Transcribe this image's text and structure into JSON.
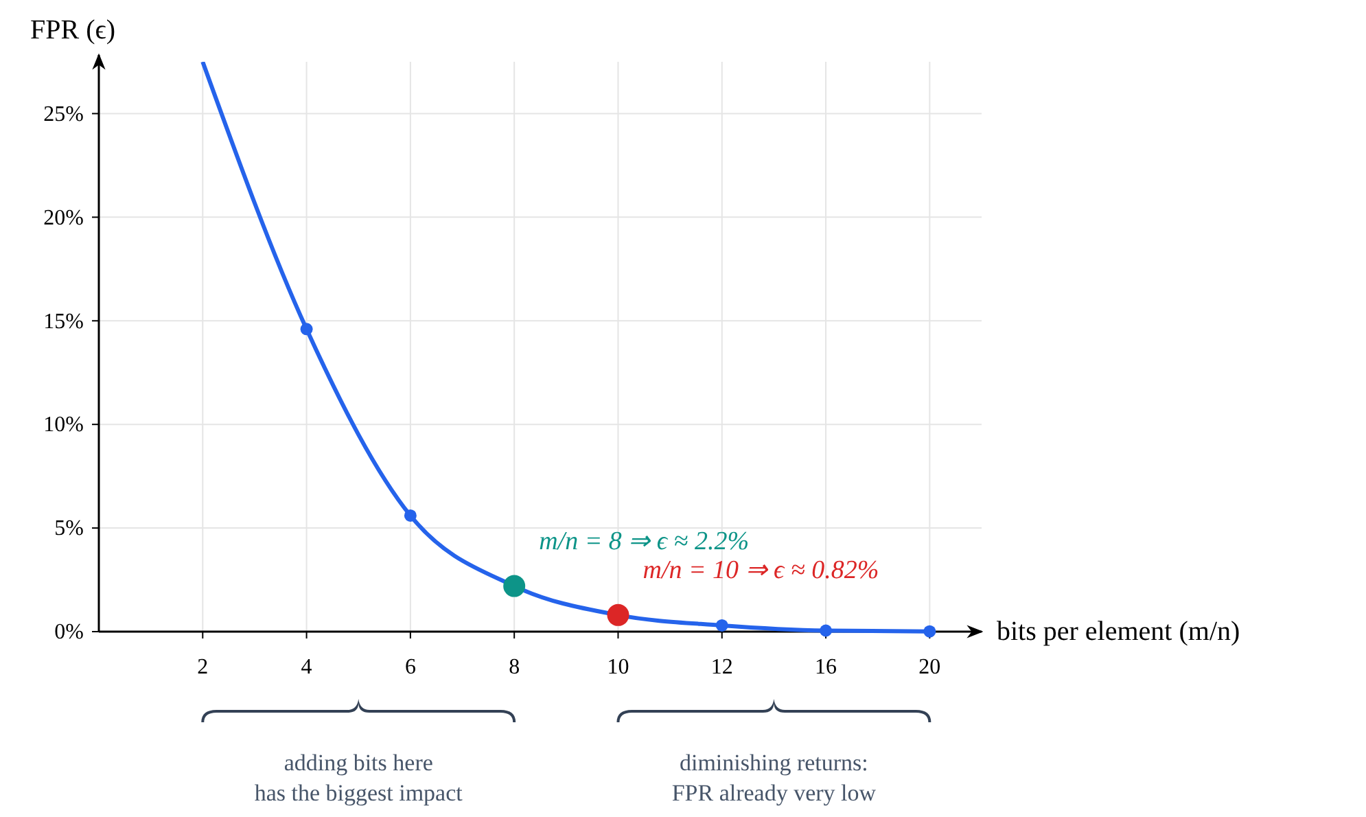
{
  "chart_data": {
    "type": "line",
    "xlabel": "bits per element (m/n)",
    "ylabel": "FPR (ϵ)",
    "categories": [
      "2",
      "4",
      "6",
      "8",
      "10",
      "12",
      "16",
      "20"
    ],
    "series": [
      {
        "color": "#2563eb",
        "marker": "none",
        "values": [
          27.5,
          14.6,
          5.6,
          2.2,
          0.8,
          0.3,
          0.05,
          0.01
        ]
      },
      {
        "type": "scatter",
        "color": "#2563eb",
        "marker": "circle",
        "values": [
          null,
          14.6,
          5.6,
          null,
          null,
          0.3,
          0.05,
          0.01
        ]
      },
      {
        "type": "scatter",
        "color": "#0d9488",
        "marker": "circle",
        "values": [
          null,
          null,
          null,
          2.2,
          null,
          null,
          null,
          null
        ]
      },
      {
        "type": "scatter",
        "color": "#dc2626",
        "marker": "circle",
        "values": [
          null,
          null,
          null,
          null,
          0.8,
          null,
          null,
          null
        ]
      }
    ],
    "ylim": [
      0,
      27.5
    ],
    "yticks": [
      {
        "value": 0,
        "label": "0%"
      },
      {
        "value": 5,
        "label": "5%"
      },
      {
        "value": 10,
        "label": "10%"
      },
      {
        "value": 15,
        "label": "15%"
      },
      {
        "value": 20,
        "label": "20%"
      },
      {
        "value": 25,
        "label": "25%"
      }
    ],
    "grid": true,
    "annotations": [
      {
        "text": "m/n = 8 ⇒ ϵ ≈ 2.2%",
        "x": "8",
        "y": 2.2
      },
      {
        "text": "m/n = 10 ⇒ ϵ ≈ 0.82%",
        "x": "10",
        "y": 0.8
      },
      "adding bits here\nhas the biggest impact",
      "diminishing returns:\nFPR already very low"
    ]
  }
}
